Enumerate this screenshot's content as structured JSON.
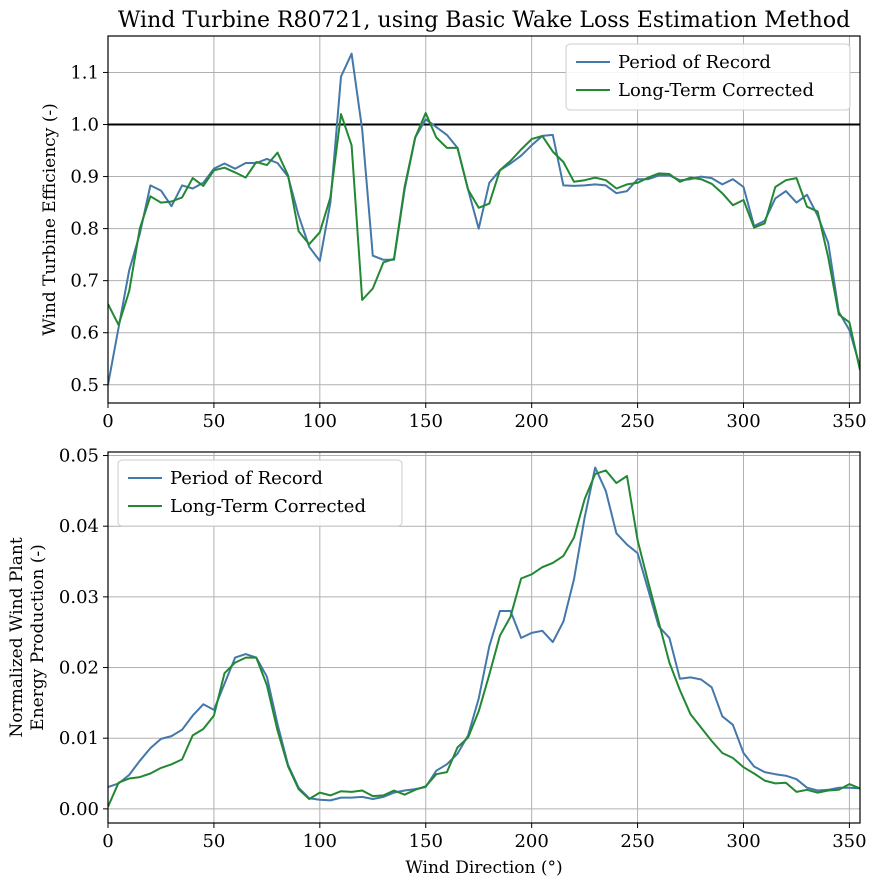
{
  "figure": {
    "title": "Wind Turbine R80721, using Basic Wake Loss Estimation Method"
  },
  "colors": {
    "period_of_record": "#4477aa",
    "long_term_corrected": "#228833",
    "reference_line": "#000000",
    "grid": "#b0b0b0"
  },
  "chart_data": [
    {
      "type": "line",
      "title": "Wind Turbine R80721, using Basic Wake Loss Estimation Method",
      "xlabel": "",
      "ylabel": "Wind Turbine Efficiency (-)",
      "xlim": [
        0,
        355
      ],
      "ylim": [
        0.465,
        1.17
      ],
      "xticks": [
        "0",
        "50",
        "100",
        "150",
        "200",
        "250",
        "300",
        "350"
      ],
      "yticks": [
        "0.5",
        "0.6",
        "0.7",
        "0.8",
        "0.9",
        "1.0",
        "1.1"
      ],
      "grid": true,
      "legend_position": "upper right",
      "reference_line": {
        "y": 1.0
      },
      "x": [
        0,
        5,
        10,
        15,
        20,
        25,
        30,
        35,
        40,
        45,
        50,
        55,
        60,
        65,
        70,
        75,
        80,
        85,
        90,
        95,
        100,
        105,
        110,
        115,
        120,
        125,
        130,
        135,
        140,
        145,
        150,
        155,
        160,
        165,
        170,
        175,
        180,
        185,
        190,
        195,
        200,
        205,
        210,
        215,
        220,
        225,
        230,
        235,
        240,
        245,
        250,
        255,
        260,
        265,
        270,
        275,
        280,
        285,
        290,
        295,
        300,
        305,
        310,
        315,
        320,
        325,
        330,
        335,
        340,
        345,
        350,
        355
      ],
      "series": [
        {
          "name": "Period of Record",
          "values": [
            0.5,
            0.61,
            0.72,
            0.79,
            0.883,
            0.873,
            0.843,
            0.883,
            0.877,
            0.888,
            0.915,
            0.925,
            0.915,
            0.926,
            0.926,
            0.934,
            0.926,
            0.9,
            0.825,
            0.765,
            0.738,
            0.85,
            1.092,
            1.136,
            0.99,
            0.748,
            0.74,
            0.74,
            0.875,
            0.975,
            1.01,
            0.995,
            0.98,
            0.955,
            0.875,
            0.8,
            0.888,
            0.912,
            0.925,
            0.94,
            0.96,
            0.978,
            0.98,
            0.883,
            0.882,
            0.883,
            0.885,
            0.883,
            0.868,
            0.872,
            0.895,
            0.895,
            0.902,
            0.902,
            0.893,
            0.895,
            0.9,
            0.897,
            0.885,
            0.895,
            0.88,
            0.805,
            0.815,
            0.858,
            0.872,
            0.85,
            0.865,
            0.825,
            0.773,
            0.64,
            0.605,
            0.535
          ]
        },
        {
          "name": "Long-Term Corrected",
          "values": [
            0.655,
            0.615,
            0.68,
            0.8,
            0.862,
            0.85,
            0.852,
            0.86,
            0.897,
            0.882,
            0.912,
            0.917,
            0.908,
            0.898,
            0.928,
            0.922,
            0.946,
            0.902,
            0.795,
            0.77,
            0.793,
            0.86,
            1.02,
            0.96,
            0.663,
            0.685,
            0.735,
            0.742,
            0.88,
            0.975,
            1.022,
            0.975,
            0.955,
            0.955,
            0.875,
            0.84,
            0.848,
            0.912,
            0.93,
            0.952,
            0.972,
            0.978,
            0.948,
            0.928,
            0.89,
            0.893,
            0.898,
            0.893,
            0.877,
            0.885,
            0.888,
            0.898,
            0.906,
            0.905,
            0.89,
            0.898,
            0.895,
            0.886,
            0.868,
            0.845,
            0.855,
            0.802,
            0.81,
            0.88,
            0.893,
            0.897,
            0.842,
            0.833,
            0.745,
            0.635,
            0.62,
            0.528
          ]
        }
      ]
    },
    {
      "type": "line",
      "title": "",
      "xlabel": "Wind Direction (°)",
      "ylabel_line1": "Normalized Wind Plant",
      "ylabel_line2": "Energy Production (-)",
      "xlim": [
        0,
        355
      ],
      "ylim": [
        -0.002,
        0.0505
      ],
      "xticks": [
        "0",
        "50",
        "100",
        "150",
        "200",
        "250",
        "300",
        "350"
      ],
      "yticks": [
        "0.00",
        "0.01",
        "0.02",
        "0.03",
        "0.04",
        "0.05"
      ],
      "grid": true,
      "legend_position": "upper left",
      "x": [
        0,
        5,
        10,
        15,
        20,
        25,
        30,
        35,
        40,
        45,
        50,
        55,
        60,
        65,
        70,
        75,
        80,
        85,
        90,
        95,
        100,
        105,
        110,
        115,
        120,
        125,
        130,
        135,
        140,
        145,
        150,
        155,
        160,
        165,
        170,
        175,
        180,
        185,
        190,
        195,
        200,
        205,
        210,
        215,
        220,
        225,
        230,
        235,
        240,
        245,
        250,
        255,
        260,
        265,
        270,
        275,
        280,
        285,
        290,
        295,
        300,
        305,
        310,
        315,
        320,
        325,
        330,
        335,
        340,
        345,
        350,
        355
      ],
      "series": [
        {
          "name": "Period of Record",
          "values": [
            0.0031,
            0.0036,
            0.0048,
            0.0068,
            0.0086,
            0.0099,
            0.0103,
            0.0112,
            0.0132,
            0.0148,
            0.014,
            0.0177,
            0.0214,
            0.0219,
            0.0214,
            0.0187,
            0.012,
            0.0062,
            0.003,
            0.0015,
            0.0013,
            0.0012,
            0.0016,
            0.0016,
            0.0017,
            0.0014,
            0.0017,
            0.0023,
            0.0026,
            0.0028,
            0.0031,
            0.0054,
            0.0063,
            0.0078,
            0.0104,
            0.0156,
            0.023,
            0.028,
            0.028,
            0.0242,
            0.0249,
            0.0252,
            0.0236,
            0.0265,
            0.0325,
            0.0412,
            0.0483,
            0.045,
            0.039,
            0.0374,
            0.0362,
            0.031,
            0.0258,
            0.0242,
            0.0184,
            0.0186,
            0.0183,
            0.0172,
            0.0131,
            0.0119,
            0.0079,
            0.006,
            0.0052,
            0.0049,
            0.0047,
            0.0042,
            0.003,
            0.0026,
            0.0027,
            0.003,
            0.003,
            0.0029
          ]
        },
        {
          "name": "Long-Term Corrected",
          "values": [
            0.0003,
            0.0037,
            0.0043,
            0.0045,
            0.005,
            0.0058,
            0.0063,
            0.007,
            0.0104,
            0.0113,
            0.0132,
            0.0192,
            0.0207,
            0.0214,
            0.0214,
            0.0175,
            0.0111,
            0.006,
            0.0028,
            0.0014,
            0.0023,
            0.0019,
            0.0025,
            0.0024,
            0.0026,
            0.0018,
            0.0019,
            0.0026,
            0.002,
            0.0027,
            0.0032,
            0.0049,
            0.0052,
            0.0087,
            0.0101,
            0.0138,
            0.019,
            0.0245,
            0.0272,
            0.0326,
            0.0332,
            0.0342,
            0.0348,
            0.0358,
            0.0384,
            0.0438,
            0.0474,
            0.0479,
            0.0461,
            0.0471,
            0.038,
            0.0321,
            0.0264,
            0.0207,
            0.0168,
            0.0134,
            0.0115,
            0.0096,
            0.0079,
            0.0072,
            0.0059,
            0.005,
            0.004,
            0.0036,
            0.0037,
            0.0024,
            0.0027,
            0.0023,
            0.0026,
            0.0027,
            0.0035,
            0.0029
          ]
        }
      ]
    }
  ]
}
